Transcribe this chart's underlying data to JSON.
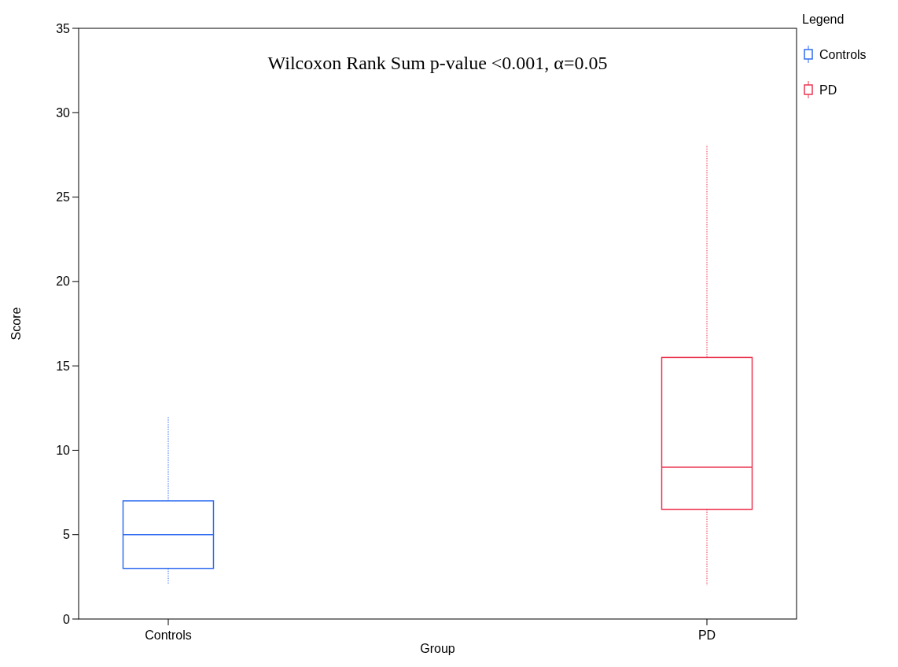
{
  "chart_data": {
    "type": "box",
    "xlabel": "Group",
    "ylabel": "Score",
    "legend_title": "Legend",
    "categories": [
      "Controls",
      "PD"
    ],
    "series": [
      {
        "name": "Controls",
        "color": "#2f6cf0",
        "boxes": [
          {
            "low": 2.1,
            "q1": 3,
            "median": 5,
            "q3": 7,
            "high": 12
          },
          null
        ]
      },
      {
        "name": "PD",
        "color": "#ec3550",
        "boxes": [
          null,
          {
            "low": 2,
            "q1": 6.5,
            "median": 9,
            "q3": 15.5,
            "high": 28.1
          }
        ]
      }
    ],
    "ylim": [
      0,
      35
    ],
    "yticks": [
      0,
      5,
      10,
      15,
      20,
      25,
      30,
      35
    ],
    "grid": false,
    "legend": "top right",
    "line_style": "dotted",
    "annotations": [
      "Wilcoxon Rank Sum p-value <0.001, α=0.05"
    ]
  }
}
